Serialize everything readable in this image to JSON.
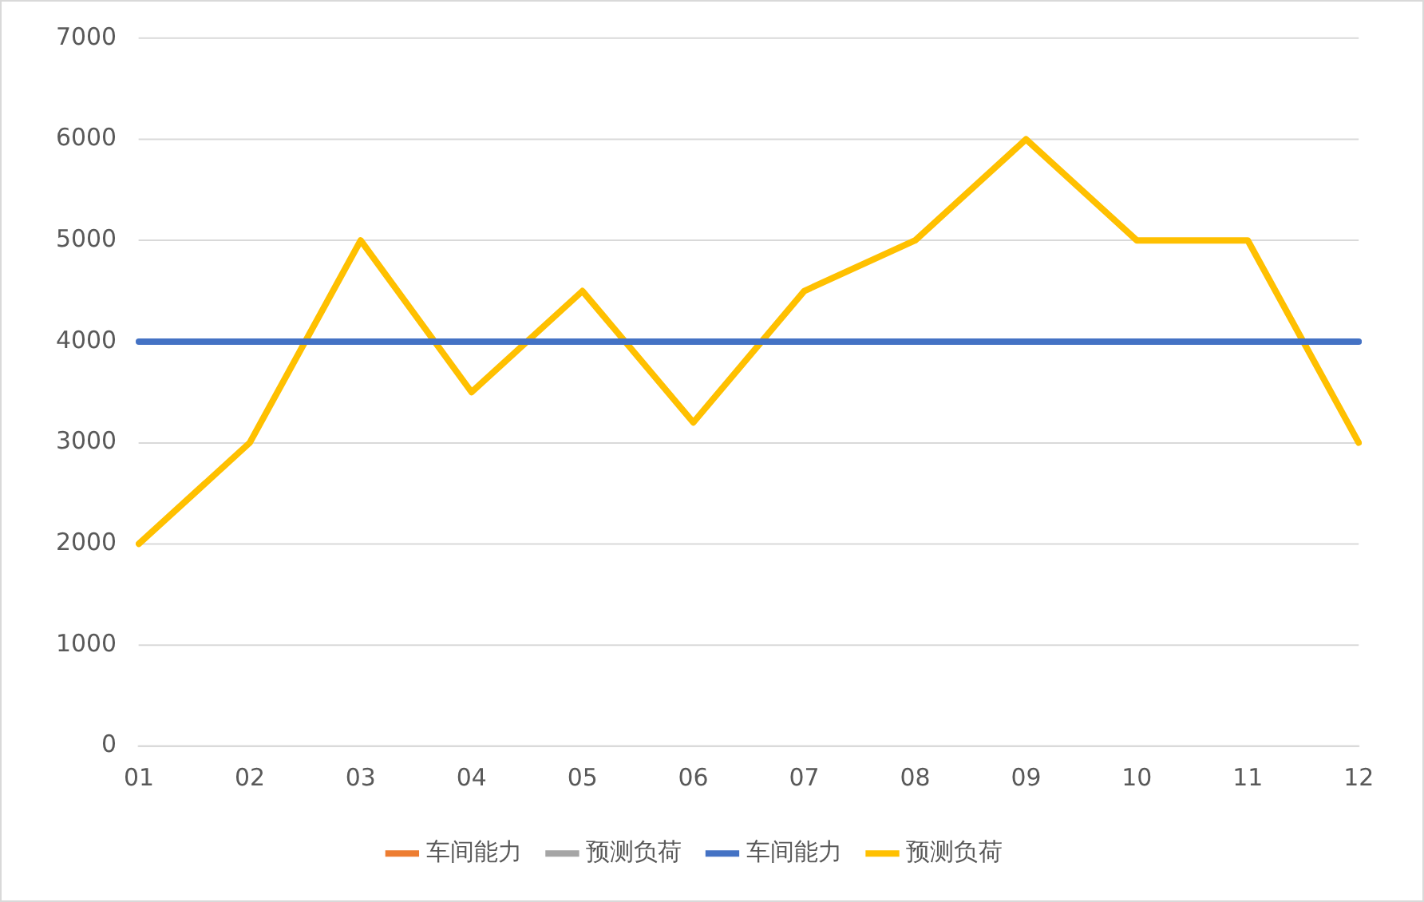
{
  "chart_data": {
    "type": "line",
    "categories": [
      "01",
      "02",
      "03",
      "04",
      "05",
      "06",
      "07",
      "08",
      "09",
      "10",
      "11",
      "12"
    ],
    "series": [
      {
        "name": "车间能力",
        "color": "#ed7d31",
        "values": [
          null,
          null,
          null,
          null,
          null,
          null,
          null,
          null,
          null,
          null,
          null,
          null
        ]
      },
      {
        "name": "预测负荷",
        "color": "#a5a5a5",
        "values": [
          null,
          null,
          null,
          null,
          null,
          null,
          null,
          null,
          null,
          null,
          null,
          null
        ]
      },
      {
        "name": "车间能力",
        "color": "#4472c4",
        "values": [
          4000,
          4000,
          4000,
          4000,
          4000,
          4000,
          4000,
          4000,
          4000,
          4000,
          4000,
          4000
        ]
      },
      {
        "name": "预测负荷",
        "color": "#ffc000",
        "values": [
          2000,
          3000,
          5000,
          3500,
          4500,
          3200,
          4500,
          5000,
          6000,
          5000,
          5000,
          3000
        ]
      }
    ],
    "ylim": [
      0,
      7000
    ],
    "yticks": [
      0,
      1000,
      2000,
      3000,
      4000,
      5000,
      6000,
      7000
    ],
    "grid": "y",
    "legend": "bottom",
    "marker": "none",
    "line_style": "solid"
  }
}
